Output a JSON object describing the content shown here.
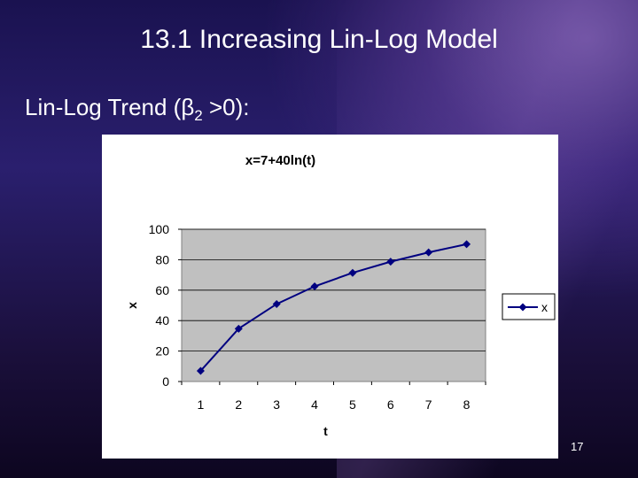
{
  "slide": {
    "title": "13.1 Increasing Lin-Log Model",
    "subtitle_prefix": "Lin-Log Trend (β",
    "subtitle_sub": "2",
    "subtitle_suffix": " >0):",
    "page_number": "17"
  },
  "colors": {
    "plot_background": "#c0c0c0",
    "series_color": "#000080",
    "chart_background": "#ffffff"
  },
  "chart_data": {
    "type": "line",
    "title": "x=7+40ln(t)",
    "xlabel": "t",
    "ylabel": "x",
    "x": [
      1,
      2,
      3,
      4,
      5,
      6,
      7,
      8
    ],
    "series": [
      {
        "name": "x",
        "values": [
          7,
          34.7,
          50.9,
          62.5,
          71.4,
          78.7,
          84.8,
          90.2
        ]
      }
    ],
    "ylim": [
      0,
      100
    ],
    "yticks": [
      "0",
      "20",
      "40",
      "60",
      "80",
      "100"
    ],
    "xticks": [
      "1",
      "2",
      "3",
      "4",
      "5",
      "6",
      "7",
      "8"
    ],
    "grid": "horizontal",
    "legend": "right",
    "marker": "diamond"
  }
}
